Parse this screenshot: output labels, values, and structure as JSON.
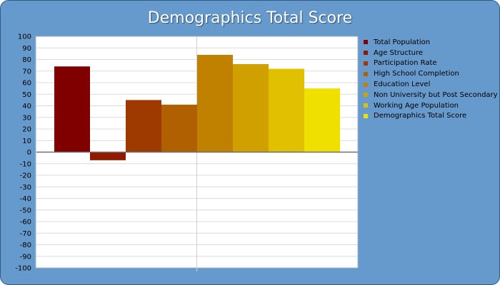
{
  "chart_data": {
    "type": "bar",
    "title": "Demographics Total Score",
    "xlabel": "",
    "ylabel": "",
    "ylim": [
      -100,
      100
    ],
    "ytick_step": 10,
    "grid": true,
    "legend_position": "right",
    "series": [
      {
        "name": "Total Population",
        "value": 74,
        "color": "#800000"
      },
      {
        "name": "Age Structure",
        "value": -7,
        "color": "#8f1a00"
      },
      {
        "name": "Participation Rate",
        "value": 45,
        "color": "#9e3a00"
      },
      {
        "name": "High School Completion",
        "value": 41,
        "color": "#b06000"
      },
      {
        "name": "Education Level",
        "value": 84,
        "color": "#c08000"
      },
      {
        "name": "Non University but Post Secondary",
        "value": 76,
        "color": "#d0a000"
      },
      {
        "name": "Working Age Population",
        "value": 72,
        "color": "#e0c000"
      },
      {
        "name": "Demographics Total Score",
        "value": 55,
        "color": "#f0e000"
      }
    ]
  }
}
